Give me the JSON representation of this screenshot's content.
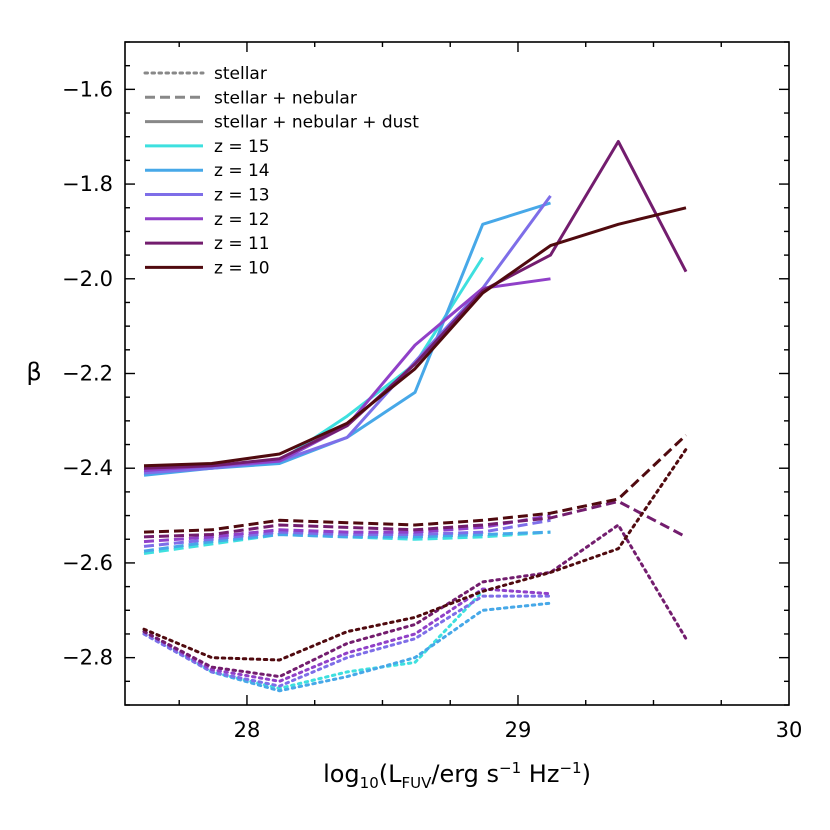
{
  "chart_data": {
    "type": "line",
    "title": "",
    "xlabel": {
      "main": "log",
      "sub": "10",
      "open": "(L",
      "lum_sub": "FUV",
      "unit": "/erg s",
      "exp1": "−1",
      "hz": " Hz",
      "exp2": "−1",
      "close": ")"
    },
    "ylabel": "β",
    "xlim": [
      27.55,
      30.0
    ],
    "ylim": [
      -2.9,
      -1.5
    ],
    "x_ticks": [
      28,
      29,
      30
    ],
    "x_tick_labels": [
      "28",
      "29",
      "30"
    ],
    "y_ticks": [
      -2.8,
      -2.6,
      -2.4,
      -2.2,
      -2.0,
      -1.8,
      -1.6
    ],
    "y_tick_labels": [
      "−2.8",
      "−2.6",
      "−2.4",
      "−2.2",
      "−2.0",
      "−1.8",
      "−1.6"
    ],
    "legend": {
      "placement": "top-left",
      "style_entries": [
        {
          "label": "stellar",
          "dash": "dotted",
          "color": "#888888"
        },
        {
          "label": "stellar + nebular",
          "dash": "dashed",
          "color": "#888888"
        },
        {
          "label": "stellar + nebular + dust",
          "dash": "solid",
          "color": "#888888"
        }
      ]
    },
    "series": [
      {
        "name": "z = 15",
        "color": "#3EE0DF",
        "stellar": {
          "x": [
            27.62,
            27.87,
            28.12,
            28.37,
            28.62,
            28.87
          ],
          "y": [
            -2.745,
            -2.83,
            -2.865,
            -2.83,
            -2.81,
            -2.66
          ]
        },
        "nebular": {
          "x": [
            27.62,
            27.87,
            28.12,
            28.37,
            28.62,
            28.87,
            29.12
          ],
          "y": [
            -2.58,
            -2.56,
            -2.54,
            -2.545,
            -2.55,
            -2.545,
            -2.535
          ]
        },
        "dust": {
          "x": [
            27.62,
            27.87,
            28.12,
            28.37,
            28.62,
            28.87
          ],
          "y": [
            -2.41,
            -2.4,
            -2.385,
            -2.29,
            -2.18,
            -1.955
          ]
        }
      },
      {
        "name": "z = 14",
        "color": "#47A8E8",
        "stellar": {
          "x": [
            27.62,
            27.87,
            28.12,
            28.37,
            28.62,
            28.87,
            29.12
          ],
          "y": [
            -2.75,
            -2.83,
            -2.87,
            -2.84,
            -2.8,
            -2.7,
            -2.685
          ]
        },
        "nebular": {
          "x": [
            27.62,
            27.87,
            28.12,
            28.37,
            28.62,
            28.87,
            29.12
          ],
          "y": [
            -2.575,
            -2.555,
            -2.54,
            -2.545,
            -2.545,
            -2.54,
            -2.535
          ]
        },
        "dust": {
          "x": [
            27.62,
            27.87,
            28.12,
            28.37,
            28.62,
            28.87,
            29.12
          ],
          "y": [
            -2.415,
            -2.4,
            -2.39,
            -2.335,
            -2.24,
            -1.885,
            -1.84
          ]
        }
      },
      {
        "name": "z = 13",
        "color": "#7E6EE8",
        "stellar": {
          "x": [
            27.62,
            27.87,
            28.12,
            28.37,
            28.62,
            28.87,
            29.12
          ],
          "y": [
            -2.75,
            -2.83,
            -2.86,
            -2.8,
            -2.76,
            -2.67,
            -2.67
          ]
        },
        "nebular": {
          "x": [
            27.62,
            27.87,
            28.12,
            28.37,
            28.62,
            28.87,
            29.12
          ],
          "y": [
            -2.565,
            -2.55,
            -2.535,
            -2.54,
            -2.54,
            -2.535,
            -2.51
          ]
        },
        "dust": {
          "x": [
            27.62,
            27.87,
            28.12,
            28.37,
            28.62,
            28.87,
            29.12
          ],
          "y": [
            -2.41,
            -2.4,
            -2.385,
            -2.335,
            -2.175,
            -2.02,
            -1.825
          ]
        }
      },
      {
        "name": "z = 12",
        "color": "#9040C8",
        "stellar": {
          "x": [
            27.62,
            27.87,
            28.12,
            28.37,
            28.62,
            28.87,
            29.12
          ],
          "y": [
            -2.745,
            -2.825,
            -2.85,
            -2.79,
            -2.75,
            -2.655,
            -2.665
          ]
        },
        "nebular": {
          "x": [
            27.62,
            27.87,
            28.12,
            28.37,
            28.62,
            28.87,
            29.12
          ],
          "y": [
            -2.555,
            -2.545,
            -2.53,
            -2.535,
            -2.535,
            -2.525,
            -2.5
          ]
        },
        "dust": {
          "x": [
            27.62,
            27.87,
            28.12,
            28.37,
            28.62,
            28.87,
            29.12
          ],
          "y": [
            -2.405,
            -2.395,
            -2.385,
            -2.31,
            -2.14,
            -2.02,
            -2.0
          ]
        }
      },
      {
        "name": "z = 11",
        "color": "#731D6E",
        "stellar": {
          "x": [
            27.62,
            27.87,
            28.12,
            28.37,
            28.62,
            28.87,
            29.12,
            29.37,
            29.62
          ],
          "y": [
            -2.745,
            -2.82,
            -2.84,
            -2.77,
            -2.73,
            -2.64,
            -2.62,
            -2.52,
            -2.76
          ]
        },
        "nebular": {
          "x": [
            27.62,
            27.87,
            28.12,
            28.37,
            28.62,
            28.87,
            29.12,
            29.37,
            29.62
          ],
          "y": [
            -2.545,
            -2.54,
            -2.52,
            -2.525,
            -2.53,
            -2.52,
            -2.505,
            -2.47,
            -2.545
          ]
        },
        "dust": {
          "x": [
            27.62,
            27.87,
            28.12,
            28.37,
            28.62,
            28.87,
            29.12,
            29.37,
            29.62
          ],
          "y": [
            -2.4,
            -2.395,
            -2.38,
            -2.31,
            -2.18,
            -2.025,
            -1.95,
            -1.71,
            -1.985
          ]
        }
      },
      {
        "name": "z = 10",
        "color": "#500A0F",
        "stellar": {
          "x": [
            27.62,
            27.87,
            28.12,
            28.37,
            28.62,
            28.87,
            29.12,
            29.37,
            29.62
          ],
          "y": [
            -2.74,
            -2.8,
            -2.805,
            -2.745,
            -2.715,
            -2.66,
            -2.62,
            -2.57,
            -2.36
          ]
        },
        "nebular": {
          "x": [
            27.62,
            27.87,
            28.12,
            28.37,
            28.62,
            28.87,
            29.12,
            29.37,
            29.62
          ],
          "y": [
            -2.535,
            -2.53,
            -2.51,
            -2.515,
            -2.52,
            -2.51,
            -2.495,
            -2.465,
            -2.33
          ]
        },
        "dust": {
          "x": [
            27.62,
            27.87,
            28.12,
            28.37,
            28.62,
            28.87,
            29.12,
            29.37,
            29.62
          ],
          "y": [
            -2.395,
            -2.39,
            -2.37,
            -2.305,
            -2.19,
            -2.03,
            -1.93,
            -1.885,
            -1.85
          ]
        }
      }
    ]
  }
}
